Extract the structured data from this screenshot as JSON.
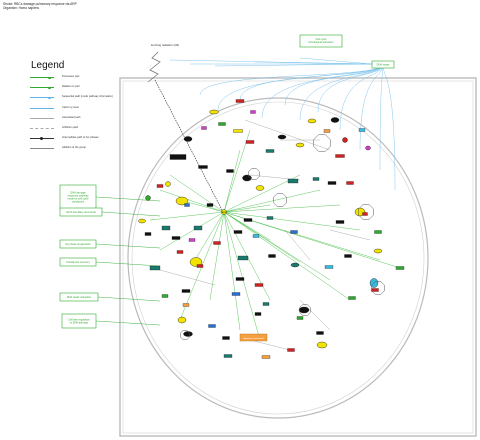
{
  "header": {
    "title_line1": "Stroke: RBCs damage pulmonary response via ARP",
    "title_line2": "Organism: Homo sapiens"
  },
  "legend": {
    "title": "Legend",
    "items": [
      {
        "label": "Processes part",
        "color": "#2eaa2e",
        "style": "solid"
      },
      {
        "label": "Relation to part",
        "color": "#2eaa2e",
        "style": "solid"
      },
      {
        "label": "Sequential path (mode pathway information)",
        "color": "#5fb3e8",
        "style": "solid"
      },
      {
        "label": "Catch up reset",
        "color": "#5fb3e8",
        "style": "solid"
      },
      {
        "label": "Associated path",
        "color": "#aaaaaa",
        "style": "solid"
      },
      {
        "label": "Inhibition path",
        "color": "#aaaaaa",
        "style": "dashed"
      },
      {
        "label": "Intermediate path to her phases",
        "color": "#333333",
        "style": "arrow"
      },
      {
        "label": "Addition of the group",
        "color": "#888888",
        "style": "solid"
      }
    ]
  },
  "diagram": {
    "ionizing_label": "Ionizing radiation (IR)",
    "top_box": "Cell cycle\nchecksignal activation",
    "right_box": "DNA repair",
    "left_boxes": [
      "DNA damage\nresponse pathway\nmodel of cell cycle\ncheckpoint",
      "G1/S boundary and arrest",
      "G2 phase progression",
      "Checkpoint recovery",
      "DNA repair activation",
      "Cell fate regulation\nto DNA damage"
    ],
    "center_node": "ATM",
    "bottom_node": "Apoptosis and arrest",
    "node_colors": {
      "green": "#2eaa2e",
      "teal": "#1a7a6e",
      "red": "#d42020",
      "yellow": "#f2e200",
      "orange": "#f5a040",
      "blue": "#2a6fd6",
      "cyan": "#39b8e0",
      "magenta": "#d040c8",
      "black": "#111111"
    }
  }
}
